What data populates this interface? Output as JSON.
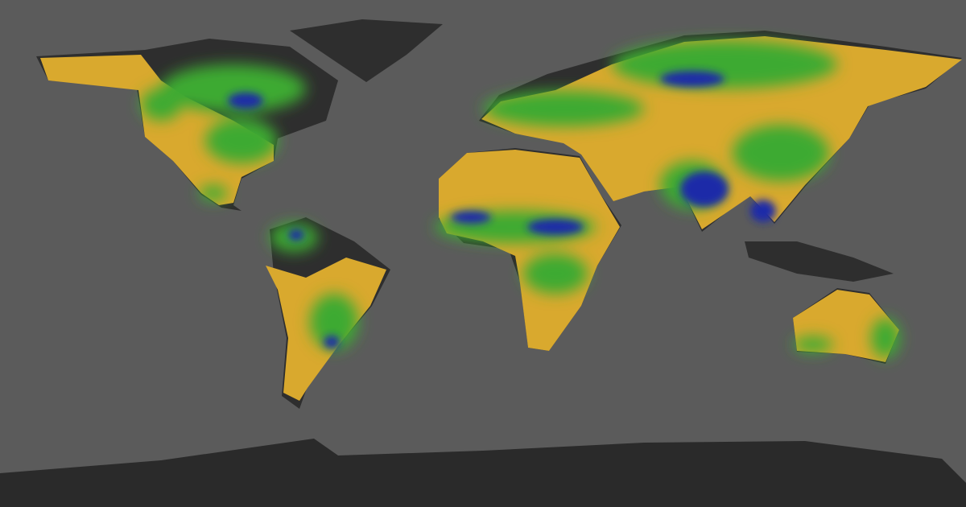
{
  "map": {
    "projection": "equirectangular",
    "colors": {
      "ocean": "#5b5b5b",
      "land_nodata": "#2e2e2e",
      "antarctica": "#2a2a2a",
      "dry": "#d9a92e",
      "moderate": "#3caa30",
      "wet": "#1b2aa8"
    }
  }
}
